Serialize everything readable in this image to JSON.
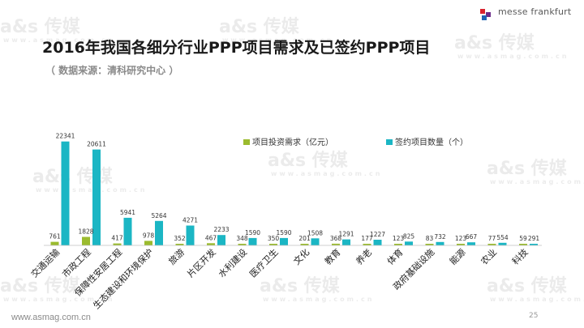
{
  "slide": {
    "title": "2016年我国各细分行业PPP项目需求及已签约PPP项目",
    "subtitle": "（ 数据来源：清科研究中心 ）",
    "logo_text": "messe frankfurt",
    "footer_url": "www.asmag.com.cn",
    "page_number": "25"
  },
  "watermark": {
    "text": "a&s 传媒",
    "url": "www.asmag.com.cn"
  },
  "colors": {
    "series1": "#9bbb2e",
    "series2": "#1bb6c4",
    "logo_red": "#d9232e",
    "logo_purple": "#6b2c8a",
    "logo_blue": "#1f64b4"
  },
  "chart_data": {
    "type": "bar",
    "categories": [
      "交通运输",
      "市政工程",
      "保障性安居工程",
      "生态建设和环境保护",
      "旅游",
      "片区开发",
      "水利建设",
      "医疗卫生",
      "文化",
      "教育",
      "养老",
      "体育",
      "政府基础设施",
      "能源",
      "农业",
      "科技"
    ],
    "series": [
      {
        "name": "项目投资需求（亿元）",
        "values": [
          761,
          1828,
          417,
          978,
          352,
          467,
          348,
          350,
          201,
          368,
          177,
          123,
          83,
          123,
          77,
          59
        ]
      },
      {
        "name": "签约项目数量（个）",
        "values": [
          22341,
          20611,
          5941,
          5264,
          4271,
          2233,
          1590,
          1590,
          1508,
          1291,
          1227,
          825,
          732,
          667,
          554,
          291
        ]
      }
    ],
    "ylim": [
      0,
      23500
    ],
    "grid": false,
    "legend_position": "top-right"
  }
}
